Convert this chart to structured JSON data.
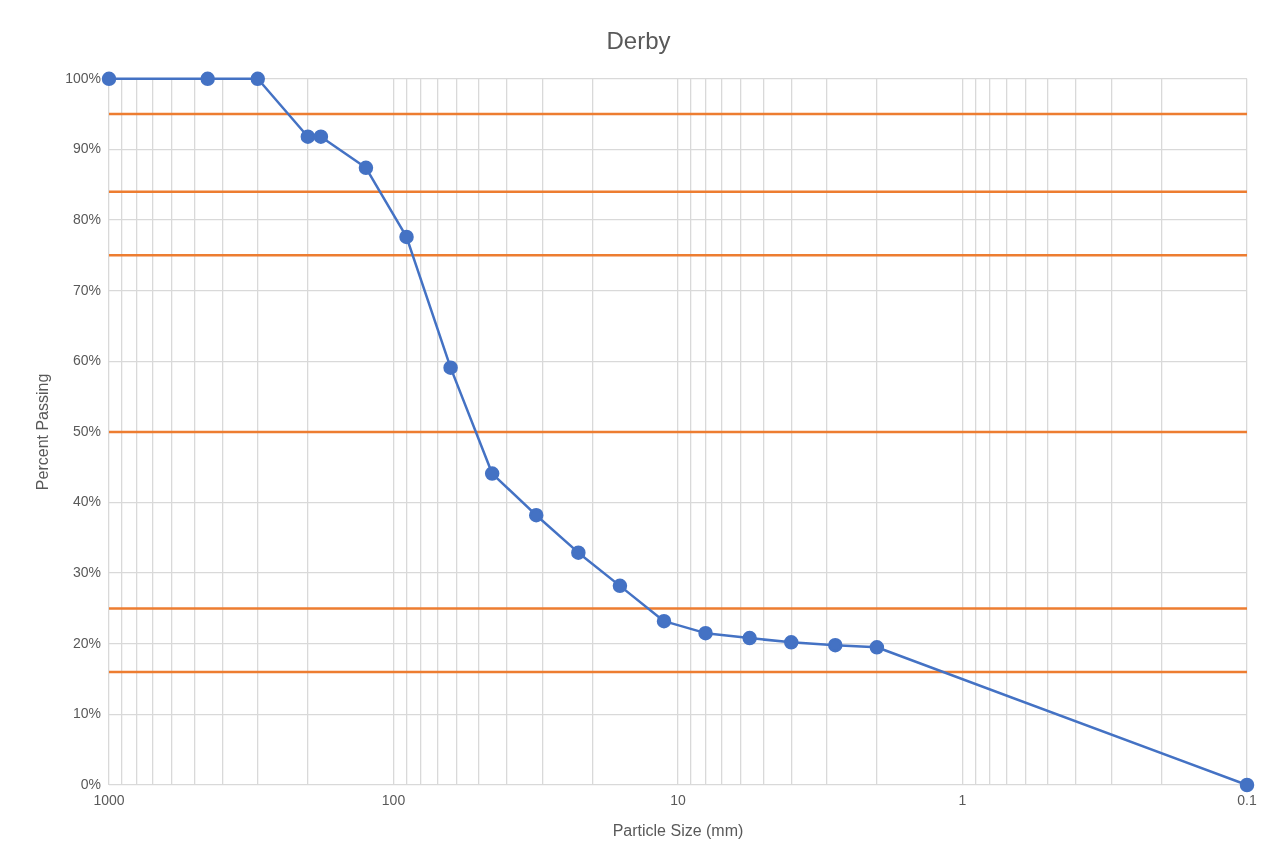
{
  "chart_data": {
    "type": "line",
    "title": "Derby",
    "xlabel": "Particle Size (mm)",
    "ylabel": "Percent Passing",
    "x": [
      1000,
      450,
      300,
      200,
      180,
      125,
      90,
      63,
      45,
      31.5,
      22.4,
      16,
      11.2,
      8,
      5.6,
      4,
      2.8,
      2,
      0.1
    ],
    "series": [
      {
        "color": "#4472c4",
        "values": [
          100,
          100,
          100,
          91.8,
          91.8,
          87.4,
          77.6,
          59.1,
          44.1,
          38.2,
          32.9,
          28.2,
          23.2,
          21.5,
          20.8,
          20.2,
          19.8,
          19.5,
          0
        ]
      }
    ],
    "log": "x",
    "xlim": [
      1000,
      0.1
    ],
    "xticks": [
      {
        "value": 1000,
        "label": "1000"
      },
      {
        "value": 900,
        "label": null
      },
      {
        "value": 800,
        "label": null
      },
      {
        "value": 700,
        "label": null
      },
      {
        "value": 600,
        "label": null
      },
      {
        "value": 500,
        "label": null
      },
      {
        "value": 400,
        "label": null
      },
      {
        "value": 300,
        "label": null
      },
      {
        "value": 200,
        "label": null
      },
      {
        "value": 100,
        "label": "100"
      },
      {
        "value": 90,
        "label": null
      },
      {
        "value": 80,
        "label": null
      },
      {
        "value": 70,
        "label": null
      },
      {
        "value": 60,
        "label": null
      },
      {
        "value": 50,
        "label": null
      },
      {
        "value": 40,
        "label": null
      },
      {
        "value": 30,
        "label": null
      },
      {
        "value": 20,
        "label": null
      },
      {
        "value": 10,
        "label": "10"
      },
      {
        "value": 9,
        "label": null
      },
      {
        "value": 8,
        "label": null
      },
      {
        "value": 7,
        "label": null
      },
      {
        "value": 6,
        "label": null
      },
      {
        "value": 5,
        "label": null
      },
      {
        "value": 4,
        "label": null
      },
      {
        "value": 3,
        "label": null
      },
      {
        "value": 2,
        "label": null
      },
      {
        "value": 1,
        "label": "1"
      },
      {
        "value": 0.9,
        "label": null
      },
      {
        "value": 0.8,
        "label": null
      },
      {
        "value": 0.7,
        "label": null
      },
      {
        "value": 0.6,
        "label": null
      },
      {
        "value": 0.5,
        "label": null
      },
      {
        "value": 0.4,
        "label": null
      },
      {
        "value": 0.3,
        "label": null
      },
      {
        "value": 0.2,
        "label": null
      },
      {
        "value": 0.1,
        "label": "0.1"
      }
    ],
    "ylim": [
      0,
      100
    ],
    "yticks": [
      {
        "value": 0,
        "label": "0%"
      },
      {
        "value": 10,
        "label": "10%"
      },
      {
        "value": 20,
        "label": "20%"
      },
      {
        "value": 30,
        "label": "30%"
      },
      {
        "value": 40,
        "label": "40%"
      },
      {
        "value": 50,
        "label": "50%"
      },
      {
        "value": 60,
        "label": "60%"
      },
      {
        "value": 70,
        "label": "70%"
      },
      {
        "value": 80,
        "label": "80%"
      },
      {
        "value": 90,
        "label": "90%"
      },
      {
        "value": 100,
        "label": "100%"
      }
    ],
    "ref_lines": [
      {
        "axis": "y",
        "value": 95,
        "color": "#ed7d31"
      },
      {
        "axis": "y",
        "value": 84,
        "color": "#ed7d31"
      },
      {
        "axis": "y",
        "value": 75,
        "color": "#ed7d31"
      },
      {
        "axis": "y",
        "value": 50,
        "color": "#ed7d31"
      },
      {
        "axis": "y",
        "value": 25,
        "color": "#ed7d31"
      },
      {
        "axis": "y",
        "value": 16,
        "color": "#ed7d31"
      }
    ],
    "grid": true,
    "legend": false,
    "marker": "circle",
    "line_style": "solid"
  }
}
